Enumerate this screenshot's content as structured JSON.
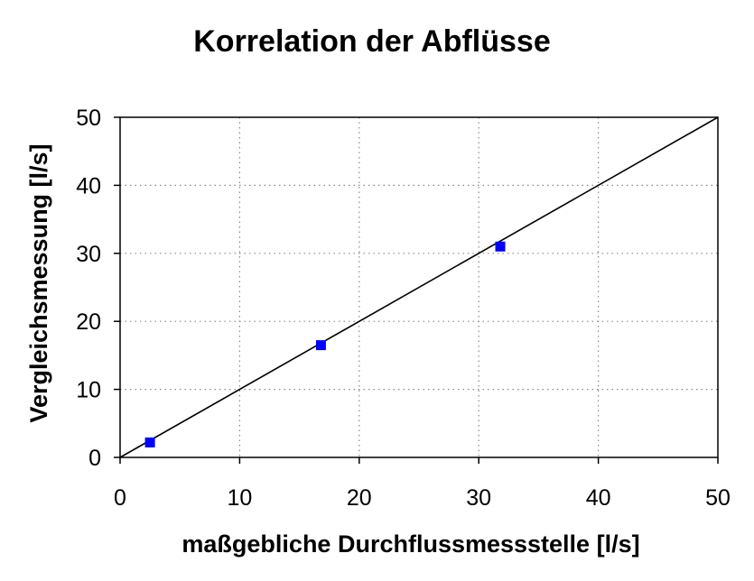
{
  "chart_data": {
    "type": "scatter",
    "title": "Korrelation der Abflüsse",
    "xlabel": "maßgebliche Durchflussmessstelle [l/s]",
    "ylabel": "Vergleichsmessung [l/s]",
    "xlim": [
      0,
      50
    ],
    "ylim": [
      0,
      50
    ],
    "xticks": [
      "0",
      "10",
      "20",
      "30",
      "40",
      "50"
    ],
    "yticks": [
      "0",
      "10",
      "20",
      "30",
      "40",
      "50"
    ],
    "grid": true,
    "series": [
      {
        "type": "scatter",
        "marker": "square",
        "color": "#0000ff",
        "points": [
          {
            "x": 2.5,
            "y": 2.2
          },
          {
            "x": 16.8,
            "y": 16.5
          },
          {
            "x": 31.8,
            "y": 31.0
          }
        ]
      },
      {
        "type": "line",
        "color": "#000000",
        "points": [
          {
            "x": 0,
            "y": 0
          },
          {
            "x": 50,
            "y": 50
          }
        ]
      }
    ]
  }
}
